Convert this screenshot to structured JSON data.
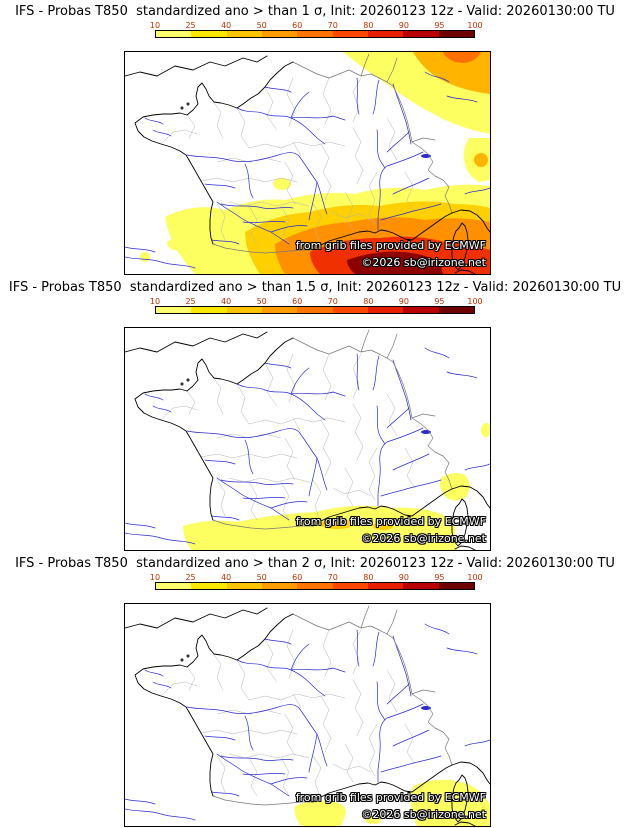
{
  "colorbar": {
    "ticks": [
      "10",
      "25",
      "40",
      "50",
      "60",
      "70",
      "80",
      "90",
      "95",
      "100"
    ],
    "colors": [
      "#ffff6e",
      "#ffe800",
      "#ffc400",
      "#ff9c00",
      "#ff7400",
      "#ff4800",
      "#e81e00",
      "#b80000",
      "#6e0000"
    ]
  },
  "credits": {
    "line1": "from grib files provided by ECMWF",
    "line2": "©2026 sb@irizone.net"
  },
  "panels": [
    {
      "id": "gt-1-sigma",
      "title": "IFS - Probas T850  standardized ano > than 1 σ, Init: 20260123 12z - Valid: 20260130:00 TU"
    },
    {
      "id": "gt-1.5-sigma",
      "title": "IFS - Probas T850  standardized ano > than 1.5 σ, Init: 20260123 12z - Valid: 20260130:00 TU"
    },
    {
      "id": "gt-2-sigma",
      "title": "IFS - Probas T850  standardized ano > than 2 σ, Init: 20260123 12z - Valid: 20260130:00 TU"
    }
  ],
  "map": {
    "region": "France",
    "colors": {
      "coast": "#000000",
      "borders": "#777777",
      "departments": "#b4b4b4",
      "rivers": "#2929d6"
    }
  }
}
